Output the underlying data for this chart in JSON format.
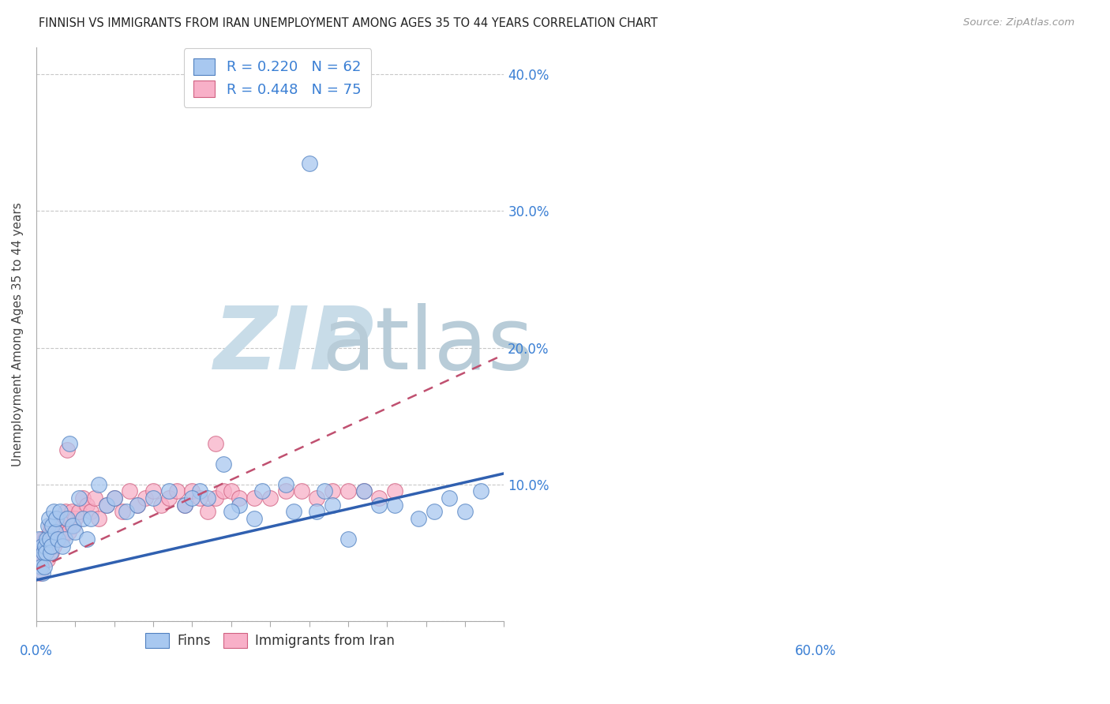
{
  "title": "FINNISH VS IMMIGRANTS FROM IRAN UNEMPLOYMENT AMONG AGES 35 TO 44 YEARS CORRELATION CHART",
  "source": "Source: ZipAtlas.com",
  "ylabel": "Unemployment Among Ages 35 to 44 years",
  "xlim": [
    0.0,
    0.6
  ],
  "ylim": [
    0.0,
    0.42
  ],
  "yticks": [
    0.0,
    0.1,
    0.2,
    0.3,
    0.4
  ],
  "blue_color": "#a8c8f0",
  "blue_edge_color": "#5080c0",
  "pink_color": "#f8b0c8",
  "pink_edge_color": "#d06080",
  "blue_line_color": "#3060b0",
  "pink_line_color": "#c05070",
  "label_color": "#3a7fd4",
  "grid_color": "#c8c8c8",
  "watermark_zip_color": "#c8dce8",
  "watermark_atlas_color": "#b8ccd8",
  "finns_x": [
    0.003,
    0.005,
    0.006,
    0.007,
    0.008,
    0.009,
    0.01,
    0.011,
    0.012,
    0.013,
    0.015,
    0.016,
    0.017,
    0.018,
    0.019,
    0.02,
    0.022,
    0.024,
    0.025,
    0.027,
    0.03,
    0.033,
    0.036,
    0.04,
    0.043,
    0.047,
    0.05,
    0.055,
    0.06,
    0.065,
    0.07,
    0.08,
    0.09,
    0.1,
    0.115,
    0.13,
    0.15,
    0.17,
    0.19,
    0.21,
    0.24,
    0.26,
    0.29,
    0.32,
    0.35,
    0.36,
    0.37,
    0.38,
    0.4,
    0.42,
    0.44,
    0.46,
    0.49,
    0.51,
    0.53,
    0.55,
    0.57,
    0.33,
    0.28,
    0.25,
    0.22,
    0.2
  ],
  "finns_y": [
    0.06,
    0.045,
    0.04,
    0.055,
    0.035,
    0.05,
    0.04,
    0.055,
    0.05,
    0.06,
    0.07,
    0.075,
    0.06,
    0.05,
    0.055,
    0.07,
    0.08,
    0.065,
    0.075,
    0.06,
    0.08,
    0.055,
    0.06,
    0.075,
    0.13,
    0.07,
    0.065,
    0.09,
    0.075,
    0.06,
    0.075,
    0.1,
    0.085,
    0.09,
    0.08,
    0.085,
    0.09,
    0.095,
    0.085,
    0.095,
    0.115,
    0.085,
    0.095,
    0.1,
    0.335,
    0.08,
    0.095,
    0.085,
    0.06,
    0.095,
    0.085,
    0.085,
    0.075,
    0.08,
    0.09,
    0.08,
    0.095,
    0.08,
    0.075,
    0.08,
    0.09,
    0.09
  ],
  "iran_x": [
    0.002,
    0.003,
    0.004,
    0.005,
    0.006,
    0.007,
    0.008,
    0.009,
    0.01,
    0.011,
    0.012,
    0.013,
    0.014,
    0.015,
    0.016,
    0.017,
    0.018,
    0.019,
    0.02,
    0.021,
    0.022,
    0.023,
    0.024,
    0.025,
    0.026,
    0.027,
    0.028,
    0.029,
    0.03,
    0.032,
    0.034,
    0.036,
    0.038,
    0.04,
    0.042,
    0.044,
    0.046,
    0.048,
    0.05,
    0.055,
    0.06,
    0.065,
    0.07,
    0.075,
    0.08,
    0.09,
    0.1,
    0.11,
    0.12,
    0.13,
    0.14,
    0.15,
    0.16,
    0.17,
    0.18,
    0.19,
    0.2,
    0.21,
    0.22,
    0.23,
    0.24,
    0.25,
    0.26,
    0.28,
    0.3,
    0.32,
    0.34,
    0.36,
    0.38,
    0.4,
    0.42,
    0.44,
    0.46,
    0.23,
    0.04
  ],
  "iran_y": [
    0.04,
    0.045,
    0.05,
    0.035,
    0.055,
    0.06,
    0.045,
    0.05,
    0.055,
    0.06,
    0.05,
    0.055,
    0.045,
    0.06,
    0.055,
    0.065,
    0.07,
    0.05,
    0.06,
    0.065,
    0.055,
    0.06,
    0.07,
    0.065,
    0.06,
    0.075,
    0.07,
    0.06,
    0.07,
    0.06,
    0.075,
    0.065,
    0.08,
    0.075,
    0.065,
    0.075,
    0.08,
    0.07,
    0.075,
    0.08,
    0.09,
    0.085,
    0.08,
    0.09,
    0.075,
    0.085,
    0.09,
    0.08,
    0.095,
    0.085,
    0.09,
    0.095,
    0.085,
    0.09,
    0.095,
    0.085,
    0.095,
    0.09,
    0.08,
    0.09,
    0.095,
    0.095,
    0.09,
    0.09,
    0.09,
    0.095,
    0.095,
    0.09,
    0.095,
    0.095,
    0.095,
    0.09,
    0.095,
    0.13,
    0.125
  ],
  "blue_line_x0": 0.0,
  "blue_line_x1": 0.6,
  "blue_line_y0": 0.03,
  "blue_line_y1": 0.108,
  "pink_line_x0": 0.0,
  "pink_line_x1": 0.6,
  "pink_line_y0": 0.038,
  "pink_line_y1": 0.195
}
